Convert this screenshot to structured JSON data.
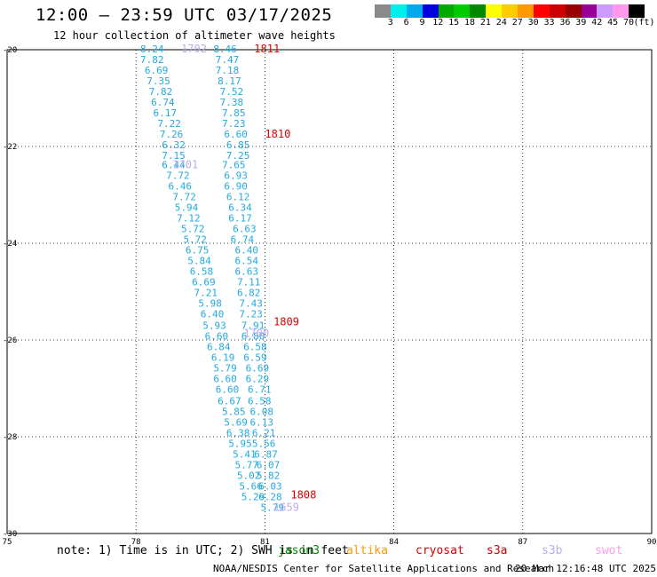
{
  "title": "12:00 — 23:59 UTC 03/17/2025",
  "subtitle": "12 hour collection of altimeter wave heights",
  "colorbar": {
    "colors": [
      "#8a8a8a",
      "#00eeee",
      "#00aaee",
      "#0000dd",
      "#00aa00",
      "#00cc00",
      "#008800",
      "#ffff00",
      "#ffcc00",
      "#ff9900",
      "#ff0000",
      "#cc0000",
      "#990000",
      "#990099",
      "#cc99ff",
      "#ff99ee",
      "#000000"
    ],
    "ticks": [
      "3",
      "6",
      "9",
      "12",
      "15",
      "18",
      "21",
      "24",
      "27",
      "30",
      "33",
      "36",
      "39",
      "42",
      "45",
      "70",
      "(ft)"
    ]
  },
  "note": "note: 1) Time is in UTC; 2) SWH is in feet",
  "legend": [
    {
      "name": "jason3",
      "color": "#008800"
    },
    {
      "name": "altika",
      "color": "#ff9900"
    },
    {
      "name": "cryosat",
      "color": "#dd0000"
    },
    {
      "name": "s3a",
      "color": "#cc0000"
    },
    {
      "name": "s3b",
      "color": "#bbaaee"
    },
    {
      "name": "swot",
      "color": "#ff99ee"
    }
  ],
  "credit": "NOAA/NESDIS Center for Satellite Applications and Research",
  "timestamp": "20 Mar 12:16:48 UTC 2025",
  "chart_data": {
    "type": "scatter",
    "xlim": [
      75,
      90
    ],
    "ylim": [
      -30,
      -20
    ],
    "xticks": [
      "75",
      "78",
      "81",
      "84",
      "87",
      "90"
    ],
    "yticks": [
      "-20",
      "-22",
      "-24",
      "-26",
      "-28",
      "-30"
    ],
    "grid": true,
    "series": [
      {
        "name": "track west",
        "color": "#22aadd",
        "fontsize": 11,
        "points": [
          {
            "x": 78.1,
            "y": -19.98,
            "label": "8.24"
          },
          {
            "x": 78.1,
            "y": -20.2,
            "label": "7.82"
          },
          {
            "x": 78.2,
            "y": -20.42,
            "label": "6.69"
          },
          {
            "x": 78.25,
            "y": -20.64,
            "label": "7.35"
          },
          {
            "x": 78.3,
            "y": -20.86,
            "label": "7.82"
          },
          {
            "x": 78.35,
            "y": -21.08,
            "label": "6.74"
          },
          {
            "x": 78.4,
            "y": -21.3,
            "label": "6.17"
          },
          {
            "x": 78.5,
            "y": -21.52,
            "label": "7.22"
          },
          {
            "x": 78.55,
            "y": -21.74,
            "label": "7.26"
          },
          {
            "x": 78.6,
            "y": -21.96,
            "label": "6.32"
          },
          {
            "x": 78.6,
            "y": -22.18,
            "label": "7.15"
          },
          {
            "x": 78.6,
            "y": -22.38,
            "label": "6.44"
          },
          {
            "x": 78.7,
            "y": -22.6,
            "label": "7.72"
          },
          {
            "x": 78.75,
            "y": -22.82,
            "label": "6.46"
          },
          {
            "x": 78.85,
            "y": -23.04,
            "label": "7.72"
          },
          {
            "x": 78.9,
            "y": -23.26,
            "label": "5.94"
          },
          {
            "x": 78.95,
            "y": -23.48,
            "label": "7.12"
          },
          {
            "x": 79.05,
            "y": -23.7,
            "label": "5.72"
          },
          {
            "x": 79.1,
            "y": -23.92,
            "label": "5.72"
          },
          {
            "x": 79.15,
            "y": -24.14,
            "label": "6.75"
          },
          {
            "x": 79.2,
            "y": -24.36,
            "label": "5.84"
          },
          {
            "x": 79.25,
            "y": -24.58,
            "label": "6.58"
          },
          {
            "x": 79.3,
            "y": -24.8,
            "label": "6.69"
          },
          {
            "x": 79.35,
            "y": -25.02,
            "label": "7.21"
          },
          {
            "x": 79.45,
            "y": -25.24,
            "label": "5.98"
          },
          {
            "x": 79.5,
            "y": -25.46,
            "label": "6.40"
          },
          {
            "x": 79.55,
            "y": -25.7,
            "label": "5.93"
          },
          {
            "x": 79.6,
            "y": -25.92,
            "label": "6.60"
          },
          {
            "x": 79.65,
            "y": -26.14,
            "label": "6.84"
          },
          {
            "x": 79.75,
            "y": -26.36,
            "label": "6.19"
          },
          {
            "x": 79.8,
            "y": -26.58,
            "label": "5.79"
          },
          {
            "x": 79.8,
            "y": -26.8,
            "label": "6.60"
          },
          {
            "x": 79.85,
            "y": -27.02,
            "label": "6.60"
          },
          {
            "x": 79.9,
            "y": -27.26,
            "label": "6.67"
          },
          {
            "x": 80.0,
            "y": -27.48,
            "label": "5.85"
          },
          {
            "x": 80.05,
            "y": -27.7,
            "label": "5.69"
          },
          {
            "x": 80.1,
            "y": -27.92,
            "label": "6.38"
          },
          {
            "x": 80.15,
            "y": -28.14,
            "label": "5.95"
          },
          {
            "x": 80.25,
            "y": -28.36,
            "label": "5.41"
          },
          {
            "x": 80.3,
            "y": -28.58,
            "label": "5.77"
          },
          {
            "x": 80.35,
            "y": -28.8,
            "label": "5.02"
          },
          {
            "x": 80.4,
            "y": -29.02,
            "label": "5.66"
          },
          {
            "x": 80.45,
            "y": -29.24,
            "label": "5.29"
          }
        ]
      },
      {
        "name": "track east",
        "color": "#22aadd",
        "fontsize": 11,
        "points": [
          {
            "x": 79.8,
            "y": -19.98,
            "label": "8.46"
          },
          {
            "x": 79.85,
            "y": -20.2,
            "label": "7.47"
          },
          {
            "x": 79.85,
            "y": -20.42,
            "label": "7.18"
          },
          {
            "x": 79.9,
            "y": -20.64,
            "label": "8.17"
          },
          {
            "x": 79.95,
            "y": -20.86,
            "label": "7.52"
          },
          {
            "x": 79.95,
            "y": -21.08,
            "label": "7.38"
          },
          {
            "x": 80.0,
            "y": -21.3,
            "label": "7.85"
          },
          {
            "x": 80.0,
            "y": -21.52,
            "label": "7.23"
          },
          {
            "x": 80.05,
            "y": -21.74,
            "label": "6.60"
          },
          {
            "x": 80.1,
            "y": -21.96,
            "label": "6.85"
          },
          {
            "x": 80.1,
            "y": -22.18,
            "label": "7.25"
          },
          {
            "x": 80.0,
            "y": -22.38,
            "label": "7.65"
          },
          {
            "x": 80.05,
            "y": -22.6,
            "label": "6.93"
          },
          {
            "x": 80.05,
            "y": -22.82,
            "label": "6.90"
          },
          {
            "x": 80.1,
            "y": -23.04,
            "label": "6.12"
          },
          {
            "x": 80.15,
            "y": -23.26,
            "label": "6.34"
          },
          {
            "x": 80.15,
            "y": -23.48,
            "label": "6.17"
          },
          {
            "x": 80.25,
            "y": -23.7,
            "label": "6.63"
          },
          {
            "x": 80.2,
            "y": -23.92,
            "label": "6.74"
          },
          {
            "x": 80.3,
            "y": -24.14,
            "label": "6.40"
          },
          {
            "x": 80.3,
            "y": -24.36,
            "label": "6.54"
          },
          {
            "x": 80.3,
            "y": -24.58,
            "label": "6.63"
          },
          {
            "x": 80.35,
            "y": -24.8,
            "label": "7.11"
          },
          {
            "x": 80.35,
            "y": -25.02,
            "label": "6.82"
          },
          {
            "x": 80.4,
            "y": -25.24,
            "label": "7.43"
          },
          {
            "x": 80.4,
            "y": -25.46,
            "label": "7.23"
          },
          {
            "x": 80.45,
            "y": -25.7,
            "label": "7.91"
          },
          {
            "x": 80.45,
            "y": -25.92,
            "label": "6.80"
          },
          {
            "x": 80.5,
            "y": -26.14,
            "label": "6.58"
          },
          {
            "x": 80.5,
            "y": -26.36,
            "label": "6.59"
          },
          {
            "x": 80.55,
            "y": -26.58,
            "label": "6.69"
          },
          {
            "x": 80.55,
            "y": -26.8,
            "label": "6.29"
          },
          {
            "x": 80.6,
            "y": -27.02,
            "label": "6.71"
          },
          {
            "x": 80.6,
            "y": -27.26,
            "label": "6.58"
          },
          {
            "x": 80.65,
            "y": -27.48,
            "label": "6.08"
          },
          {
            "x": 80.65,
            "y": -27.7,
            "label": "6.13"
          },
          {
            "x": 80.7,
            "y": -27.92,
            "label": "6.21"
          },
          {
            "x": 80.7,
            "y": -28.14,
            "label": "5.56"
          },
          {
            "x": 80.75,
            "y": -28.36,
            "label": "6.87"
          },
          {
            "x": 80.8,
            "y": -28.58,
            "label": "6.07"
          },
          {
            "x": 80.8,
            "y": -28.8,
            "label": "5.82"
          },
          {
            "x": 80.85,
            "y": -29.02,
            "label": "6.03"
          },
          {
            "x": 80.85,
            "y": -29.24,
            "label": "6.28"
          },
          {
            "x": 80.9,
            "y": -29.46,
            "label": "5.79"
          }
        ]
      },
      {
        "name": "overpass times red",
        "color": "#dd0000",
        "fontsize": 12,
        "points": [
          {
            "x": 80.75,
            "y": -19.98,
            "label": "1811"
          },
          {
            "x": 81.0,
            "y": -21.74,
            "label": "1810"
          },
          {
            "x": 81.2,
            "y": -25.62,
            "label": "1809"
          },
          {
            "x": 81.6,
            "y": -29.2,
            "label": "1808"
          }
        ]
      },
      {
        "name": "overpass times violet",
        "color": "#bbaaee",
        "fontsize": 12,
        "points": [
          {
            "x": 79.05,
            "y": -19.98,
            "label": "1702"
          },
          {
            "x": 78.85,
            "y": -22.38,
            "label": "1701"
          },
          {
            "x": 80.5,
            "y": -25.86,
            "label": "1700"
          },
          {
            "x": 81.2,
            "y": -29.46,
            "label": "1659"
          }
        ]
      }
    ]
  }
}
